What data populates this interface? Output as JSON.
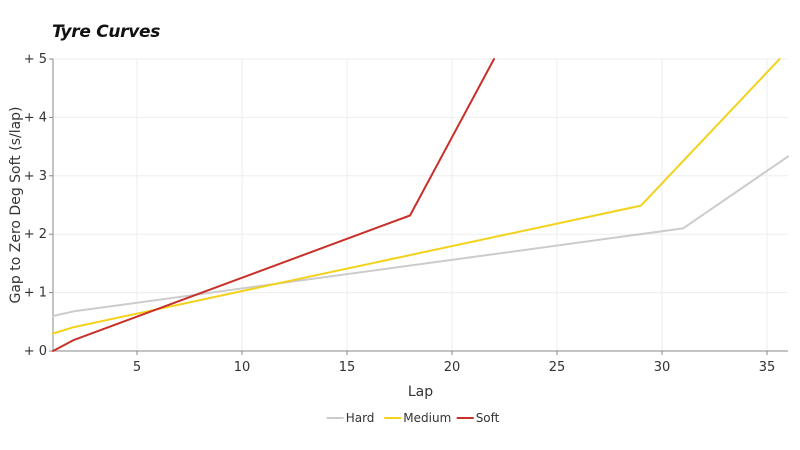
{
  "chart_data": {
    "type": "line",
    "title": "Tyre Curves",
    "xlabel": "Lap",
    "ylabel": "Gap to Zero Deg Soft (s/lap)",
    "xlim": [
      1,
      36
    ],
    "ylim": [
      0,
      5
    ],
    "x_ticks": [
      5,
      10,
      15,
      20,
      25,
      30,
      35
    ],
    "y_ticks": [
      0,
      1,
      2,
      3,
      4,
      5
    ],
    "y_tick_labels": [
      "+ 0",
      "+ 1",
      "+ 2",
      "+ 3",
      "+ 4",
      "+ 5"
    ],
    "grid": true,
    "legend_position": "bottom-center",
    "series": [
      {
        "name": "Hard",
        "color": "#cccccc",
        "points": [
          [
            1,
            0.6
          ],
          [
            2,
            0.68
          ],
          [
            31,
            2.1
          ],
          [
            36,
            3.33
          ]
        ]
      },
      {
        "name": "Medium",
        "color": "#f2d21b",
        "points": [
          [
            1,
            0.3
          ],
          [
            2,
            0.41
          ],
          [
            29,
            2.49
          ],
          [
            35.6,
            5.0
          ]
        ]
      },
      {
        "name": "Soft",
        "color": "#c8302a",
        "points": [
          [
            1,
            0.0
          ],
          [
            2,
            0.19
          ],
          [
            18,
            2.32
          ],
          [
            22,
            5.0
          ]
        ]
      }
    ]
  }
}
